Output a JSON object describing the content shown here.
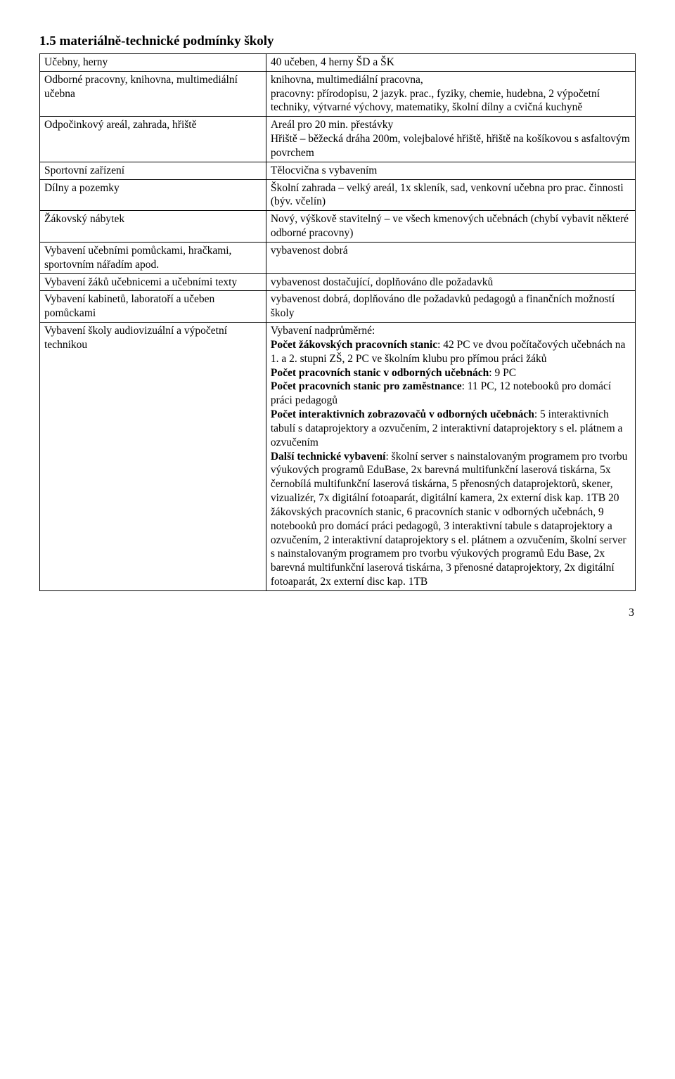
{
  "section_title": "1.5 materiálně-technické podmínky školy",
  "rows": [
    {
      "left": "Učebny, herny",
      "right": [
        {
          "text": "40 učeben, 4 herny ŠD a ŠK"
        }
      ]
    },
    {
      "left": "Odborné pracovny, knihovna, multimediální učebna",
      "right": [
        {
          "text": "knihovna, multimediální pracovna,"
        },
        {
          "text": "pracovny: přírodopisu, 2 jazyk. prac., fyziky, chemie, hudebna, 2 výpočetní techniky, výtvarné výchovy, matematiky, školní dílny a cvičná kuchyně"
        }
      ]
    },
    {
      "left": "Odpočinkový areál, zahrada, hřiště",
      "right": [
        {
          "text": "Areál pro 20 min. přestávky"
        },
        {
          "text": "Hřiště – běžecká dráha 200m, volejbalové hřiště, hřiště na košíkovou s asfaltovým povrchem"
        }
      ]
    },
    {
      "left": "Sportovní zařízení",
      "right": [
        {
          "text": "Tělocvična s vybavením"
        }
      ]
    },
    {
      "left": "Dílny a pozemky",
      "right": [
        {
          "text": "Školní zahrada – velký areál, 1x skleník, sad, venkovní učebna pro prac. činnosti (býv. včelín)"
        }
      ]
    },
    {
      "left": "Žákovský nábytek",
      "right": [
        {
          "text": "Nový, výškově stavitelný – ve všech kmenových učebnách (chybí vybavit některé odborné pracovny)"
        }
      ]
    },
    {
      "left": "Vybavení učebními pomůckami, hračkami, sportovním nářadím apod.",
      "right": [
        {
          "text": "vybavenost dobrá"
        }
      ]
    },
    {
      "left": "Vybavení žáků učebnicemi a učebními texty",
      "right": [
        {
          "text": "vybavenost dostačující, doplňováno dle požadavků"
        }
      ]
    },
    {
      "left": "Vybavení kabinetů, laboratoří a učeben pomůckami",
      "right": [
        {
          "text": "vybavenost dobrá, doplňováno dle požadavků pedagogů a finančních možností školy"
        }
      ]
    },
    {
      "left": "Vybavení školy audiovizuální a výpočetní technikou",
      "right": [
        {
          "text": "Vybavení nadprůměrné:"
        },
        {
          "runs": [
            {
              "text": "Počet žákovských pracovních stanic",
              "bold": true
            },
            {
              "text": ": 42 PC ve dvou počítačových učebnách na 1. a 2. stupni ZŠ, 2 PC ve školním klubu pro přímou práci žáků"
            }
          ]
        },
        {
          "runs": [
            {
              "text": "Počet pracovních stanic v odborných učebnách",
              "bold": true
            },
            {
              "text": ": 9 PC"
            }
          ]
        },
        {
          "runs": [
            {
              "text": "Počet pracovních stanic pro zaměstnance",
              "bold": true
            },
            {
              "text": ": 11 PC, 12 notebooků pro domácí práci pedagogů"
            }
          ]
        },
        {
          "runs": [
            {
              "text": "Počet interaktivních zobrazovačů v odborných učebnách",
              "bold": true
            },
            {
              "text": ": 5 interaktivních tabulí s dataprojektory a ozvučením, 2 interaktivní dataprojektory s el. plátnem a ozvučením"
            }
          ]
        },
        {
          "runs": [
            {
              "text": "Další technické vybavení",
              "bold": true
            },
            {
              "text": ": školní server s nainstalovaným programem pro tvorbu výukových programů EduBase, 2x barevná multifunkční laserová tiskárna, 5x černobílá multifunkční laserová tiskárna, 5 přenosných dataprojektorů, skener, vizualizér, 7x digitální fotoaparát, digitální kamera, 2x externí disk kap. 1TB 20 žákovských pracovních stanic, 6 pracovních stanic v odborných učebnách, 9 notebooků pro domácí práci pedagogů, 3 interaktivní tabule s dataprojektory a ozvučením, 2 interaktivní dataprojektory s el. plátnem a ozvučením, školní server s nainstalovaným programem pro tvorbu výukových programů Edu Base, 2x barevná multifunkční laserová tiskárna, 3 přenosné dataprojektory, 2x digitální fotoaparát, 2x externí disc kap. 1TB"
            }
          ]
        }
      ]
    }
  ],
  "page_number": "3",
  "colors": {
    "text": "#000000",
    "border": "#000000",
    "background": "#ffffff"
  }
}
